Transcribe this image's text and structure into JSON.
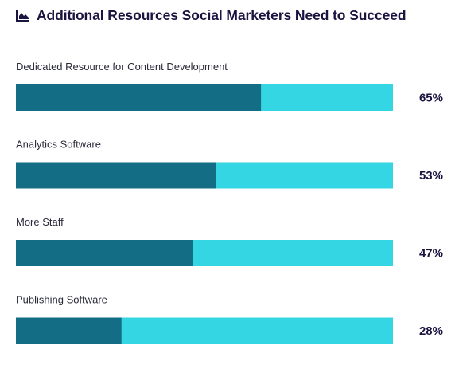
{
  "colors": {
    "title": "#1a1440",
    "icon": "#1a1440",
    "filled": "#126d85",
    "remainder": "#35d6e4",
    "label": "#2a2a3a",
    "value": "#1a1440"
  },
  "icon": "area-chart-icon",
  "chart_data": {
    "type": "bar",
    "orientation": "horizontal",
    "stacked_to_100": true,
    "title": "Additional Resources Social Marketers Need to Succeed",
    "categories": [
      "Dedicated Resource for Content Development",
      "Analytics Software",
      "More Staff",
      "Publishing Software"
    ],
    "values": [
      65,
      53,
      47,
      28
    ],
    "value_labels": [
      "65%",
      "53%",
      "47%",
      "28%"
    ],
    "xlim": [
      0,
      100
    ],
    "grid": false,
    "legend": "none"
  }
}
